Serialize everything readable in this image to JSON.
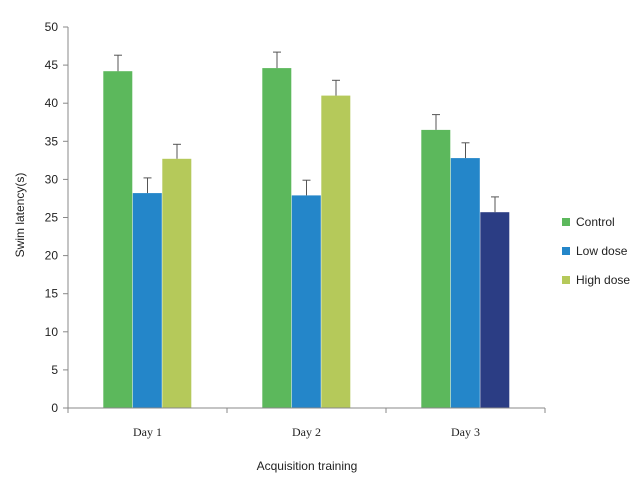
{
  "chart_data": {
    "type": "bar",
    "title": "",
    "xlabel": "Acquisition training",
    "ylabel": "Swim latency(s)",
    "ylim": [
      0,
      50
    ],
    "yticks": [
      0,
      5,
      10,
      15,
      20,
      25,
      30,
      35,
      40,
      45,
      50
    ],
    "grid": false,
    "legend_position": "right",
    "categories": [
      "Day 1",
      "Day 2",
      "Day 3"
    ],
    "series": [
      {
        "name": "Control",
        "color": "#5cb85c",
        "values": [
          44.2,
          44.6,
          36.5
        ],
        "errors": [
          2.1,
          2.1,
          2.0
        ]
      },
      {
        "name": "Low dose",
        "color": "#2486c9",
        "values": [
          28.2,
          27.9,
          32.8
        ],
        "errors": [
          2.0,
          2.0,
          2.0
        ]
      },
      {
        "name": "High dose",
        "color": "#b5c95a",
        "values": [
          32.7,
          41.0,
          25.7
        ],
        "errors": [
          1.9,
          2.0,
          2.0
        ]
      }
    ],
    "point_colors": {
      "2-2": "#2b3d84"
    }
  }
}
